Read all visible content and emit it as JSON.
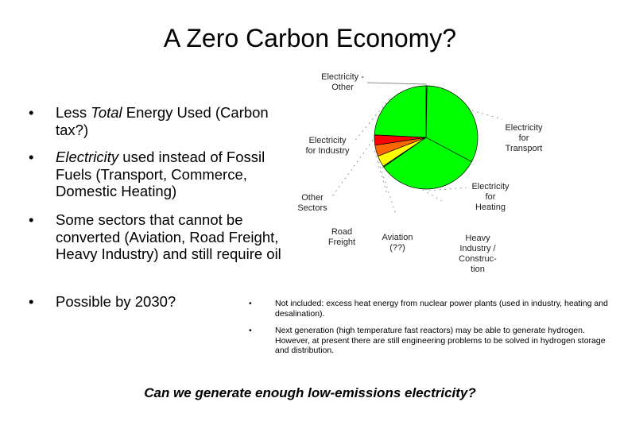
{
  "slide": {
    "title": "A Zero Carbon Economy?",
    "bullets": [
      {
        "pre": "Less ",
        "em": "Total",
        "post": " Energy Used (Carbon tax?)"
      },
      {
        "pre": "",
        "em": "Electricity",
        "post": " used instead of Fossil Fuels (Transport, Commerce, Domestic Heating)"
      },
      {
        "pre": "Some sectors that cannot be converted (Aviation, Road Freight, Heavy Industry) and still require oil",
        "em": "",
        "post": ""
      },
      {
        "pre": "Possible by 2030?",
        "em": "",
        "post": ""
      }
    ],
    "bullet_symbol": "•",
    "notes": [
      "Not included: excess heat energy from nuclear power plants (used in industry, heating and desalination).",
      "Next generation (high temperature fast reactors) may be able to generate hydrogen. However, at present there are still engineering problems to be solved in hydrogen storage and distribution."
    ],
    "question": "Can we generate enough low-emissions electricity?"
  },
  "chart_data": {
    "type": "pie",
    "title": "",
    "slices": [
      {
        "label": "Electricity - Other",
        "value": 0.3,
        "color": "#00ff00"
      },
      {
        "label": "Electricity for Transport",
        "value": 32.5,
        "color": "#00ff00"
      },
      {
        "label": "Electricity for Heating",
        "value": 32.5,
        "color": "#00ff00"
      },
      {
        "label": "Heavy Industry / Construction",
        "value": 0.3,
        "color": "#00ff00"
      },
      {
        "label": "Aviation (??)",
        "value": 3.5,
        "color": "#ffff00"
      },
      {
        "label": "Road Freight",
        "value": 3.5,
        "color": "#ff6600"
      },
      {
        "label": "Other Sectors",
        "value": 3.2,
        "color": "#ff0000"
      },
      {
        "label": "Electricity for Industry",
        "value": 24.2,
        "color": "#00ff00"
      }
    ],
    "label_text": {
      "other": "Electricity -\nOther",
      "transport": "Electricity\nfor\nTransport",
      "heating": "Electricity\nfor\nHeating",
      "heavy": "Heavy\nIndustry /\nConstruc-\ntion",
      "aviation": "Aviation\n(??)",
      "road": "Road\nFreight",
      "sectors": "Other\nSectors",
      "industry": "Electricity\nfor Industry"
    },
    "legend": "none"
  }
}
